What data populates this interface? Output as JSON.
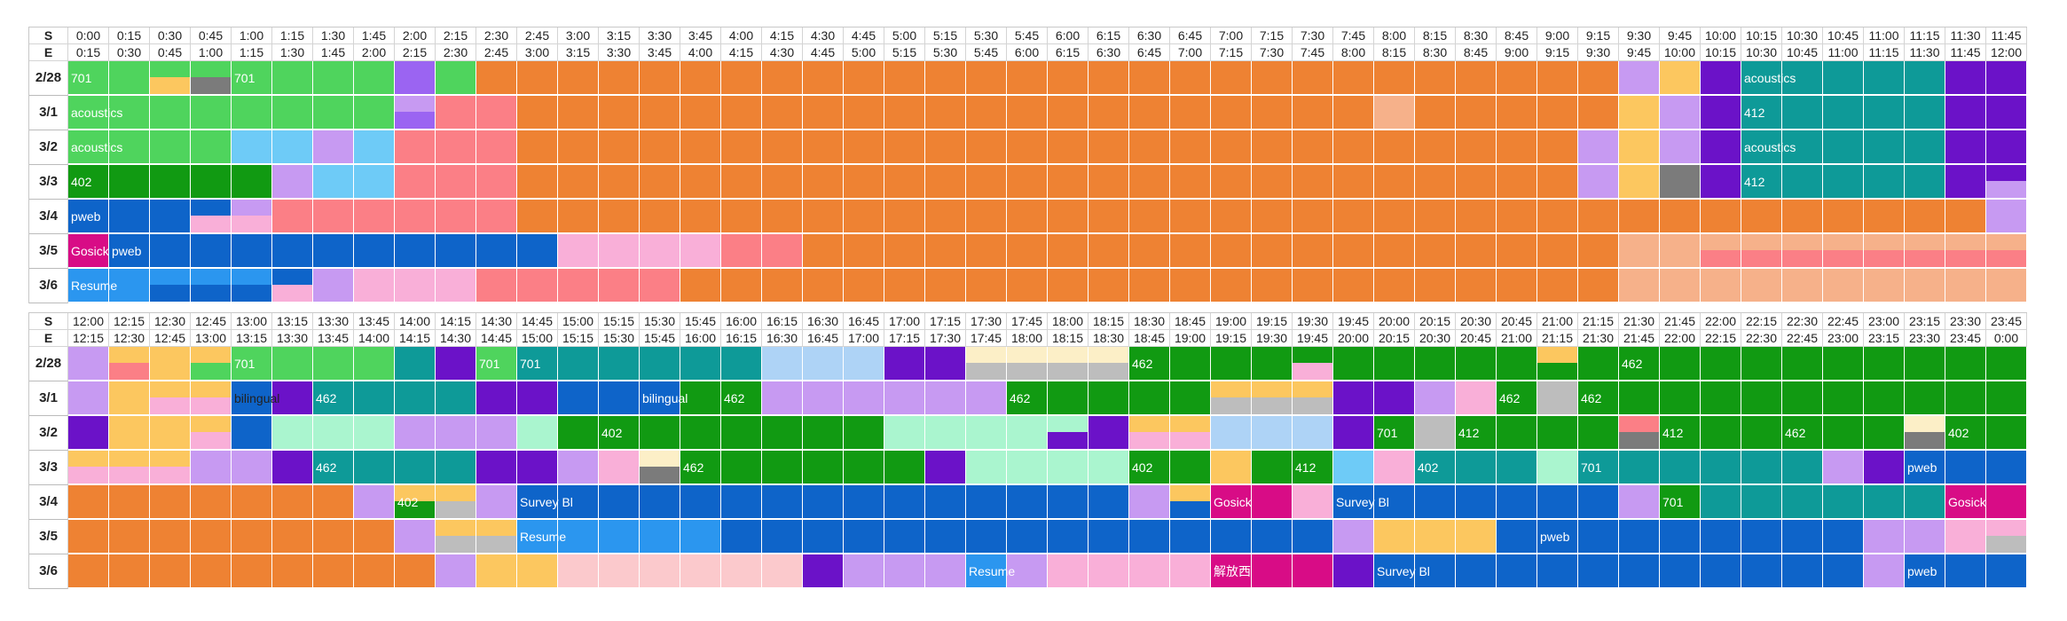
{
  "sheet_title": "",
  "row_labels": {
    "start": "S",
    "end": "E"
  },
  "days": [
    "2/28",
    "3/1",
    "3/2",
    "3/3",
    "3/4",
    "3/5",
    "3/6"
  ],
  "block1": {
    "start_times": [
      "0:00",
      "0:15",
      "0:30",
      "0:45",
      "1:00",
      "1:15",
      "1:30",
      "1:45",
      "2:00",
      "2:15",
      "2:30",
      "2:45",
      "3:00",
      "3:15",
      "3:30",
      "3:45",
      "4:00",
      "4:15",
      "4:30",
      "4:45",
      "5:00",
      "5:15",
      "5:30",
      "5:45",
      "6:00",
      "6:15",
      "6:30",
      "6:45",
      "7:00",
      "7:15",
      "7:30",
      "7:45",
      "8:00",
      "8:15",
      "8:30",
      "8:45",
      "9:00",
      "9:15",
      "9:30",
      "9:45",
      "10:00",
      "10:15",
      "10:30",
      "10:45",
      "11:00",
      "11:15",
      "11:30",
      "11:45"
    ],
    "end_times": [
      "0:15",
      "0:30",
      "0:45",
      "1:00",
      "1:15",
      "1:30",
      "1:45",
      "2:00",
      "2:15",
      "2:30",
      "2:45",
      "3:00",
      "3:15",
      "3:30",
      "3:45",
      "4:00",
      "4:15",
      "4:30",
      "4:45",
      "5:00",
      "5:15",
      "5:30",
      "5:45",
      "6:00",
      "6:15",
      "6:30",
      "6:45",
      "7:00",
      "7:15",
      "7:30",
      "7:45",
      "8:00",
      "8:15",
      "8:30",
      "8:45",
      "9:00",
      "9:15",
      "9:30",
      "9:45",
      "10:00",
      "10:15",
      "10:30",
      "10:45",
      "11:00",
      "11:15",
      "11:30",
      "11:45",
      "12:00"
    ],
    "rows": [
      {
        "day": "2/28",
        "cells": [
          "G",
          "G",
          "G|Y",
          "G|K",
          "G",
          "G",
          "G",
          "G",
          "P",
          "G",
          "O",
          "O",
          "O",
          "O",
          "O",
          "O",
          "O",
          "O",
          "O",
          "O",
          "O",
          "O",
          "O",
          "O",
          "O",
          "O",
          "O",
          "O",
          "O",
          "O",
          "O",
          "O",
          "O",
          "O",
          "O",
          "O",
          "O",
          "O",
          "L",
          "Y",
          "V",
          "T",
          "T",
          "T",
          "T",
          "T",
          "V",
          "V"
        ],
        "labels": [
          {
            "col": 0,
            "text": "701"
          },
          {
            "col": 4,
            "text": "701"
          },
          {
            "col": 41,
            "text": "acoustics"
          }
        ]
      },
      {
        "day": "3/1",
        "cells": [
          "G",
          "G",
          "G",
          "G",
          "G",
          "G",
          "G",
          "G",
          "L|P",
          "R",
          "R",
          "O",
          "O",
          "O",
          "O",
          "O",
          "O",
          "O",
          "O",
          "O",
          "O",
          "O",
          "O",
          "O",
          "O",
          "O",
          "O",
          "O",
          "O",
          "O",
          "O",
          "O",
          "S",
          "O",
          "O",
          "O",
          "O",
          "O",
          "Y",
          "L",
          "V",
          "T",
          "T",
          "T",
          "T",
          "T",
          "V",
          "V"
        ],
        "labels": [
          {
            "col": 0,
            "text": "acoustics"
          },
          {
            "col": 41,
            "text": "412"
          }
        ]
      },
      {
        "day": "3/2",
        "cells": [
          "G",
          "G",
          "G",
          "G",
          "C",
          "C",
          "L",
          "C",
          "R",
          "R",
          "R",
          "O",
          "O",
          "O",
          "O",
          "O",
          "O",
          "O",
          "O",
          "O",
          "O",
          "O",
          "O",
          "O",
          "O",
          "O",
          "O",
          "O",
          "O",
          "O",
          "O",
          "O",
          "O",
          "O",
          "O",
          "O",
          "O",
          "L",
          "Y",
          "L",
          "V",
          "T",
          "T",
          "T",
          "T",
          "T",
          "V",
          "V"
        ],
        "labels": [
          {
            "col": 0,
            "text": "acoustics"
          },
          {
            "col": 41,
            "text": "acoustics"
          }
        ]
      },
      {
        "day": "3/3",
        "cells": [
          "D",
          "D",
          "D",
          "D",
          "D",
          "L",
          "C",
          "C",
          "R",
          "R",
          "R",
          "O",
          "O",
          "O",
          "O",
          "O",
          "O",
          "O",
          "O",
          "O",
          "O",
          "O",
          "O",
          "O",
          "O",
          "O",
          "O",
          "O",
          "O",
          "O",
          "O",
          "O",
          "O",
          "O",
          "O",
          "O",
          "O",
          "L",
          "Y",
          "K",
          "V",
          "T",
          "T",
          "T",
          "T",
          "T",
          "V",
          "V|L"
        ],
        "labels": [
          {
            "col": 0,
            "text": "402"
          },
          {
            "col": 41,
            "text": "412"
          }
        ]
      },
      {
        "day": "3/4",
        "cells": [
          "B",
          "B",
          "B",
          "B|PK",
          "L|PK",
          "R",
          "R",
          "R",
          "R",
          "R",
          "R",
          "O",
          "O",
          "O",
          "O",
          "O",
          "O",
          "O",
          "O",
          "O",
          "O",
          "O",
          "O",
          "O",
          "O",
          "O",
          "O",
          "O",
          "O",
          "O",
          "O",
          "O",
          "O",
          "O",
          "O",
          "O",
          "O",
          "O",
          "O",
          "O",
          "O",
          "O",
          "O",
          "O",
          "O",
          "O",
          "O",
          "L"
        ],
        "labels": [
          {
            "col": 0,
            "text": "pweb"
          }
        ]
      },
      {
        "day": "3/5",
        "cells": [
          "M",
          "B",
          "B",
          "B",
          "B",
          "B",
          "B",
          "B",
          "B",
          "B",
          "B",
          "B",
          "PK",
          "PK",
          "PK",
          "PK",
          "R",
          "R",
          "O",
          "O",
          "O",
          "O",
          "O",
          "O",
          "O",
          "O",
          "O",
          "O",
          "O",
          "O",
          "O",
          "O",
          "O",
          "O",
          "O",
          "O",
          "O",
          "O",
          "S",
          "S",
          "S|R",
          "S|R",
          "S|R",
          "S|R",
          "S|R",
          "S|R",
          "S|R",
          "S|R"
        ],
        "labels": [
          {
            "col": 0,
            "text": "Gosick"
          },
          {
            "col": 1,
            "text": "pweb"
          }
        ]
      },
      {
        "day": "3/6",
        "cells": [
          "A",
          "A",
          "A|B",
          "A|B",
          "A|B",
          "B|PK",
          "L",
          "PK",
          "PK",
          "PK",
          "R",
          "R",
          "R",
          "R",
          "R",
          "O",
          "O",
          "O",
          "O",
          "O",
          "O",
          "O",
          "O",
          "O",
          "O",
          "O",
          "O",
          "O",
          "O",
          "O",
          "O",
          "O",
          "O",
          "O",
          "O",
          "O",
          "O",
          "O",
          "S",
          "S",
          "S",
          "S",
          "S",
          "S",
          "S",
          "S",
          "S",
          "S"
        ],
        "labels": [
          {
            "col": 0,
            "text": "Resume"
          }
        ]
      }
    ]
  },
  "block2": {
    "start_times": [
      "12:00",
      "12:15",
      "12:30",
      "12:45",
      "13:00",
      "13:15",
      "13:30",
      "13:45",
      "14:00",
      "14:15",
      "14:30",
      "14:45",
      "15:00",
      "15:15",
      "15:30",
      "15:45",
      "16:00",
      "16:15",
      "16:30",
      "16:45",
      "17:00",
      "17:15",
      "17:30",
      "17:45",
      "18:00",
      "18:15",
      "18:30",
      "18:45",
      "19:00",
      "19:15",
      "19:30",
      "19:45",
      "20:00",
      "20:15",
      "20:30",
      "20:45",
      "21:00",
      "21:15",
      "21:30",
      "21:45",
      "22:00",
      "22:15",
      "22:30",
      "22:45",
      "23:00",
      "23:15",
      "23:30",
      "23:45"
    ],
    "end_times": [
      "12:15",
      "12:30",
      "12:45",
      "13:00",
      "13:15",
      "13:30",
      "13:45",
      "14:00",
      "14:15",
      "14:30",
      "14:45",
      "15:00",
      "15:15",
      "15:30",
      "15:45",
      "16:00",
      "16:15",
      "16:30",
      "16:45",
      "17:00",
      "17:15",
      "17:30",
      "17:45",
      "18:00",
      "18:15",
      "18:30",
      "18:45",
      "19:00",
      "19:15",
      "19:30",
      "19:45",
      "20:00",
      "20:15",
      "20:30",
      "20:45",
      "21:00",
      "21:15",
      "21:30",
      "21:45",
      "22:00",
      "22:15",
      "22:30",
      "22:45",
      "23:00",
      "23:15",
      "23:30",
      "23:45",
      "0:00"
    ],
    "rows": [
      {
        "day": "2/28",
        "cells": [
          "L",
          "Y|R",
          "Y",
          "Y|G",
          "G",
          "G",
          "G",
          "G",
          "T",
          "V",
          "G",
          "T",
          "T",
          "T",
          "T",
          "T",
          "T",
          "LB",
          "LB",
          "LB",
          "V",
          "V",
          "CR|GR",
          "CR|GR",
          "CR|GR",
          "CR|GR",
          "D",
          "D",
          "D",
          "D",
          "D|PK",
          "D",
          "D",
          "D",
          "D",
          "D",
          "Y|D",
          "D",
          "D",
          "D",
          "D",
          "D",
          "D",
          "D",
          "D",
          "D",
          "D",
          "D"
        ],
        "labels": [
          {
            "col": 4,
            "text": "701"
          },
          {
            "col": 10,
            "text": "701"
          },
          {
            "col": 11,
            "text": "701"
          },
          {
            "col": 26,
            "text": "462"
          },
          {
            "col": 38,
            "text": "462"
          }
        ]
      },
      {
        "day": "3/1",
        "cells": [
          "L",
          "Y",
          "Y|PK",
          "Y|PK",
          "B",
          "V",
          "T",
          "T",
          "T",
          "T",
          "V",
          "V",
          "B",
          "B",
          "B",
          "D",
          "D",
          "L",
          "L",
          "L",
          "L",
          "L",
          "L",
          "D",
          "D",
          "D",
          "D",
          "D",
          "Y|GR",
          "Y|GR",
          "Y|GR",
          "V",
          "V",
          "L",
          "PK",
          "D",
          "GR",
          "D",
          "D",
          "D",
          "D",
          "D",
          "D",
          "D",
          "D",
          "D",
          "D",
          "D"
        ],
        "labels": [
          {
            "col": 4,
            "text": "bilingual",
            "dark": true
          },
          {
            "col": 6,
            "text": "462"
          },
          {
            "col": 14,
            "text": "bilingual"
          },
          {
            "col": 16,
            "text": "462"
          },
          {
            "col": 23,
            "text": "462"
          },
          {
            "col": 35,
            "text": "462"
          },
          {
            "col": 37,
            "text": "462"
          }
        ]
      },
      {
        "day": "3/2",
        "cells": [
          "V",
          "Y",
          "Y",
          "Y|PK",
          "B",
          "MT",
          "MT",
          "MT",
          "L",
          "L",
          "L",
          "MT",
          "D",
          "D",
          "D",
          "D",
          "D",
          "D",
          "D",
          "D",
          "MT",
          "MT",
          "MT",
          "MT",
          "MT|V",
          "V",
          "Y|PK",
          "Y|PK",
          "LB",
          "LB",
          "LB",
          "V",
          "D",
          "GR",
          "D",
          "D",
          "D",
          "D",
          "R|K",
          "D",
          "D",
          "D",
          "D",
          "D",
          "D",
          "CR|K",
          "D",
          "D"
        ],
        "labels": [
          {
            "col": 13,
            "text": "402"
          },
          {
            "col": 32,
            "text": "701"
          },
          {
            "col": 34,
            "text": "412"
          },
          {
            "col": 39,
            "text": "412"
          },
          {
            "col": 42,
            "text": "462"
          },
          {
            "col": 46,
            "text": "402"
          }
        ]
      },
      {
        "day": "3/3",
        "cells": [
          "Y|PK",
          "Y|PK",
          "Y|PK",
          "L",
          "L",
          "V",
          "T",
          "T",
          "T",
          "T",
          "V",
          "V",
          "L",
          "PK",
          "CR|K",
          "D",
          "D",
          "D",
          "D",
          "D",
          "D",
          "V",
          "MT",
          "MT",
          "MT",
          "MT",
          "D",
          "D",
          "Y",
          "D",
          "D",
          "C",
          "PK",
          "T",
          "T",
          "T",
          "MT",
          "T",
          "T",
          "T",
          "T",
          "T",
          "T",
          "L",
          "V",
          "B",
          "B",
          "B"
        ],
        "labels": [
          {
            "col": 6,
            "text": "462"
          },
          {
            "col": 15,
            "text": "462"
          },
          {
            "col": 26,
            "text": "402"
          },
          {
            "col": 30,
            "text": "412"
          },
          {
            "col": 33,
            "text": "402"
          },
          {
            "col": 37,
            "text": "701"
          },
          {
            "col": 45,
            "text": "pweb"
          }
        ]
      },
      {
        "day": "3/4",
        "cells": [
          "O",
          "O",
          "O",
          "O",
          "O",
          "O",
          "O",
          "L",
          "Y|D",
          "Y|GR",
          "L",
          "B",
          "B",
          "B",
          "B",
          "B",
          "B",
          "B",
          "B",
          "B",
          "B",
          "B",
          "B",
          "B",
          "B",
          "B",
          "L",
          "Y|B",
          "M",
          "M",
          "PK",
          "B",
          "B",
          "B",
          "B",
          "B",
          "B",
          "B",
          "L",
          "D",
          "T",
          "T",
          "T",
          "T",
          "T",
          "T",
          "M",
          "M"
        ],
        "labels": [
          {
            "col": 8,
            "text": "402"
          },
          {
            "col": 11,
            "text": "Survey Bl"
          },
          {
            "col": 28,
            "text": "Gosick"
          },
          {
            "col": 31,
            "text": "Survey Bl"
          },
          {
            "col": 39,
            "text": "701"
          },
          {
            "col": 46,
            "text": "Gosick"
          }
        ]
      },
      {
        "day": "3/5",
        "cells": [
          "O",
          "O",
          "O",
          "O",
          "O",
          "O",
          "O",
          "O",
          "L",
          "Y|GR",
          "Y|GR",
          "A",
          "A",
          "A",
          "A",
          "A",
          "B",
          "B",
          "B",
          "B",
          "B",
          "B",
          "B",
          "B",
          "B",
          "B",
          "B",
          "B",
          "B",
          "B",
          "B",
          "L",
          "Y",
          "Y",
          "Y",
          "B",
          "B",
          "B",
          "B",
          "B",
          "B",
          "B",
          "B",
          "B",
          "L",
          "L",
          "PK",
          "PK|GR"
        ],
        "labels": [
          {
            "col": 11,
            "text": "Resume"
          },
          {
            "col": 36,
            "text": "pweb"
          }
        ]
      },
      {
        "day": "3/6",
        "cells": [
          "O",
          "O",
          "O",
          "O",
          "O",
          "O",
          "O",
          "O",
          "O",
          "L",
          "Y",
          "Y",
          "LR",
          "LR",
          "LR",
          "LR",
          "LR",
          "LR",
          "V",
          "L",
          "L",
          "L",
          "A",
          "L",
          "PK",
          "PK",
          "PK",
          "PK",
          "M",
          "M",
          "M",
          "V",
          "B",
          "B",
          "B",
          "B",
          "B",
          "B",
          "B",
          "B",
          "B",
          "B",
          "B",
          "B",
          "L",
          "B",
          "B",
          "B"
        ],
        "labels": [
          {
            "col": 22,
            "text": "Resume"
          },
          {
            "col": 28,
            "text": "解放西"
          },
          {
            "col": 32,
            "text": "Survey Bl"
          },
          {
            "col": 45,
            "text": "pweb"
          }
        ]
      }
    ]
  },
  "palette": {
    "O": "#ee8233",
    "G": "#4fd45d",
    "D": "#119a12",
    "T": "#0e9a98",
    "V": "#6b12c8",
    "L": "#c79af2",
    "P": "#9b64f2",
    "Y": "#fcc75f",
    "R": "#fb7f86",
    "PK": "#f9afd8",
    "B": "#0e64c9",
    "A": "#2b96ef",
    "C": "#6ecbf7",
    "M": "#d80c86",
    "S": "#f6b18a",
    "K": "#7b7b7b",
    "GR": "#bdbdbd",
    "LB": "#aed3f6",
    "MT": "#aaf5cf",
    "CR": "#fcefc7",
    "LR": "#fbc9cc"
  }
}
